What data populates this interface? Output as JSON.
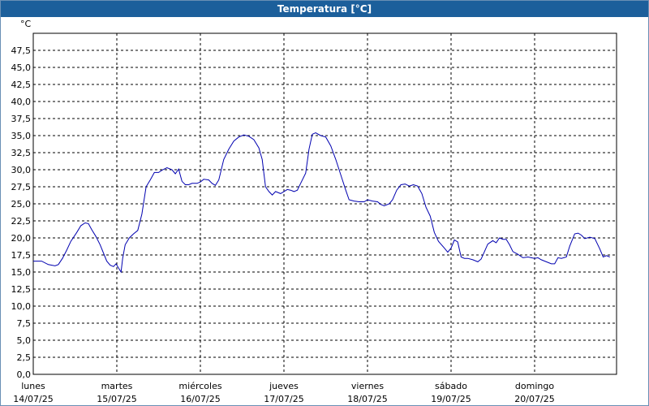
{
  "window": {
    "title": "Temperatura [°C]"
  },
  "colors": {
    "titlebar": "#1c5f9b",
    "line": "#0000b0",
    "grid": "#000000"
  },
  "chart_data": {
    "type": "line",
    "title": "Temperatura [°C]",
    "ylabel": "°C",
    "ylim": [
      0,
      50
    ],
    "grid": true,
    "y_ticks": [
      "0,0",
      "2,5",
      "5,0",
      "7,5",
      "10,0",
      "12,5",
      "15,0",
      "17,5",
      "20,0",
      "22,5",
      "25,0",
      "27,5",
      "30,0",
      "32,5",
      "35,0",
      "37,5",
      "40,0",
      "42,5",
      "45,0",
      "47,5"
    ],
    "days": [
      {
        "name": "lunes",
        "date": "14/07/25"
      },
      {
        "name": "martes",
        "date": "15/07/25"
      },
      {
        "name": "miércoles",
        "date": "16/07/25"
      },
      {
        "name": "jueves",
        "date": "17/07/25"
      },
      {
        "name": "viernes",
        "date": "18/07/25"
      },
      {
        "name": "sábado",
        "date": "19/07/25"
      },
      {
        "name": "domingo",
        "date": "20/07/25"
      }
    ],
    "x_unit": "days from 14/07/25 00:00",
    "xlim": [
      0,
      7.0
    ],
    "series": [
      {
        "values": [
          [
            0.0,
            16.6
          ],
          [
            0.1,
            16.6
          ],
          [
            0.18,
            16.1
          ],
          [
            0.26,
            15.9
          ],
          [
            0.3,
            16.1
          ],
          [
            0.35,
            17.0
          ],
          [
            0.4,
            18.2
          ],
          [
            0.45,
            19.5
          ],
          [
            0.52,
            20.8
          ],
          [
            0.57,
            21.8
          ],
          [
            0.62,
            22.2
          ],
          [
            0.66,
            22.1
          ],
          [
            0.7,
            21.2
          ],
          [
            0.75,
            20.2
          ],
          [
            0.8,
            19.0
          ],
          [
            0.85,
            17.5
          ],
          [
            0.88,
            16.6
          ],
          [
            0.92,
            16.0
          ],
          [
            0.96,
            15.8
          ],
          [
            0.99,
            16.2
          ],
          [
            1.03,
            15.4
          ],
          [
            1.05,
            15.0
          ],
          [
            1.07,
            17.0
          ],
          [
            1.1,
            19.0
          ],
          [
            1.15,
            20.0
          ],
          [
            1.2,
            20.6
          ],
          [
            1.25,
            21.1
          ],
          [
            1.3,
            23.5
          ],
          [
            1.35,
            27.5
          ],
          [
            1.4,
            28.5
          ],
          [
            1.45,
            29.6
          ],
          [
            1.5,
            29.6
          ],
          [
            1.55,
            30.0
          ],
          [
            1.6,
            30.3
          ],
          [
            1.66,
            30.0
          ],
          [
            1.7,
            29.4
          ],
          [
            1.74,
            30.1
          ],
          [
            1.78,
            28.3
          ],
          [
            1.82,
            27.8
          ],
          [
            1.86,
            27.8
          ],
          [
            1.9,
            28.0
          ],
          [
            1.96,
            28.0
          ],
          [
            2.0,
            28.2
          ],
          [
            2.04,
            28.6
          ],
          [
            2.1,
            28.5
          ],
          [
            2.14,
            28.0
          ],
          [
            2.18,
            27.7
          ],
          [
            2.22,
            28.5
          ],
          [
            2.28,
            31.5
          ],
          [
            2.34,
            33.0
          ],
          [
            2.4,
            34.2
          ],
          [
            2.46,
            34.8
          ],
          [
            2.52,
            35.1
          ],
          [
            2.58,
            34.9
          ],
          [
            2.64,
            34.4
          ],
          [
            2.7,
            33.2
          ],
          [
            2.74,
            31.5
          ],
          [
            2.78,
            27.5
          ],
          [
            2.82,
            26.8
          ],
          [
            2.86,
            26.3
          ],
          [
            2.9,
            26.8
          ],
          [
            2.96,
            26.5
          ],
          [
            3.0,
            26.8
          ],
          [
            3.04,
            27.1
          ],
          [
            3.08,
            27.0
          ],
          [
            3.12,
            26.8
          ],
          [
            3.16,
            27.0
          ],
          [
            3.2,
            28.0
          ],
          [
            3.26,
            29.5
          ],
          [
            3.3,
            33.0
          ],
          [
            3.34,
            35.2
          ],
          [
            3.38,
            35.4
          ],
          [
            3.44,
            35.0
          ],
          [
            3.5,
            34.8
          ],
          [
            3.56,
            33.5
          ],
          [
            3.62,
            31.5
          ],
          [
            3.66,
            30.0
          ],
          [
            3.7,
            28.5
          ],
          [
            3.74,
            27.0
          ],
          [
            3.78,
            25.6
          ],
          [
            3.84,
            25.4
          ],
          [
            3.9,
            25.3
          ],
          [
            3.96,
            25.3
          ],
          [
            4.0,
            25.6
          ],
          [
            4.06,
            25.4
          ],
          [
            4.12,
            25.3
          ],
          [
            4.16,
            24.9
          ],
          [
            4.2,
            24.7
          ],
          [
            4.26,
            25.0
          ],
          [
            4.3,
            25.6
          ],
          [
            4.35,
            27.0
          ],
          [
            4.4,
            27.8
          ],
          [
            4.45,
            27.9
          ],
          [
            4.5,
            27.6
          ],
          [
            4.55,
            27.8
          ],
          [
            4.6,
            27.6
          ],
          [
            4.65,
            26.5
          ],
          [
            4.7,
            24.5
          ],
          [
            4.75,
            23.2
          ],
          [
            4.8,
            20.8
          ],
          [
            4.85,
            19.5
          ],
          [
            4.92,
            18.5
          ],
          [
            4.96,
            17.9
          ],
          [
            5.0,
            18.5
          ],
          [
            5.04,
            19.7
          ],
          [
            5.08,
            19.4
          ],
          [
            5.12,
            17.2
          ],
          [
            5.16,
            17.0
          ],
          [
            5.2,
            17.0
          ],
          [
            5.26,
            16.8
          ],
          [
            5.32,
            16.5
          ],
          [
            5.36,
            16.9
          ],
          [
            5.4,
            18.0
          ],
          [
            5.44,
            19.1
          ],
          [
            5.5,
            19.6
          ],
          [
            5.54,
            19.3
          ],
          [
            5.58,
            20.0
          ],
          [
            5.62,
            19.8
          ],
          [
            5.66,
            19.8
          ],
          [
            5.7,
            19.0
          ],
          [
            5.74,
            18.0
          ],
          [
            5.8,
            17.6
          ],
          [
            5.86,
            17.1
          ],
          [
            5.92,
            17.2
          ],
          [
            6.0,
            17.0
          ],
          [
            6.04,
            17.1
          ],
          [
            6.08,
            16.8
          ],
          [
            6.14,
            16.5
          ],
          [
            6.2,
            16.2
          ],
          [
            6.24,
            16.2
          ],
          [
            6.28,
            17.1
          ],
          [
            6.32,
            17.0
          ],
          [
            6.38,
            17.2
          ],
          [
            6.42,
            18.8
          ],
          [
            6.48,
            20.6
          ],
          [
            6.52,
            20.7
          ],
          [
            6.56,
            20.4
          ],
          [
            6.6,
            19.9
          ],
          [
            6.66,
            20.1
          ],
          [
            6.72,
            19.9
          ],
          [
            6.78,
            18.4
          ],
          [
            6.82,
            17.2
          ],
          [
            6.86,
            17.4
          ],
          [
            6.9,
            17.2
          ]
        ]
      }
    ]
  }
}
